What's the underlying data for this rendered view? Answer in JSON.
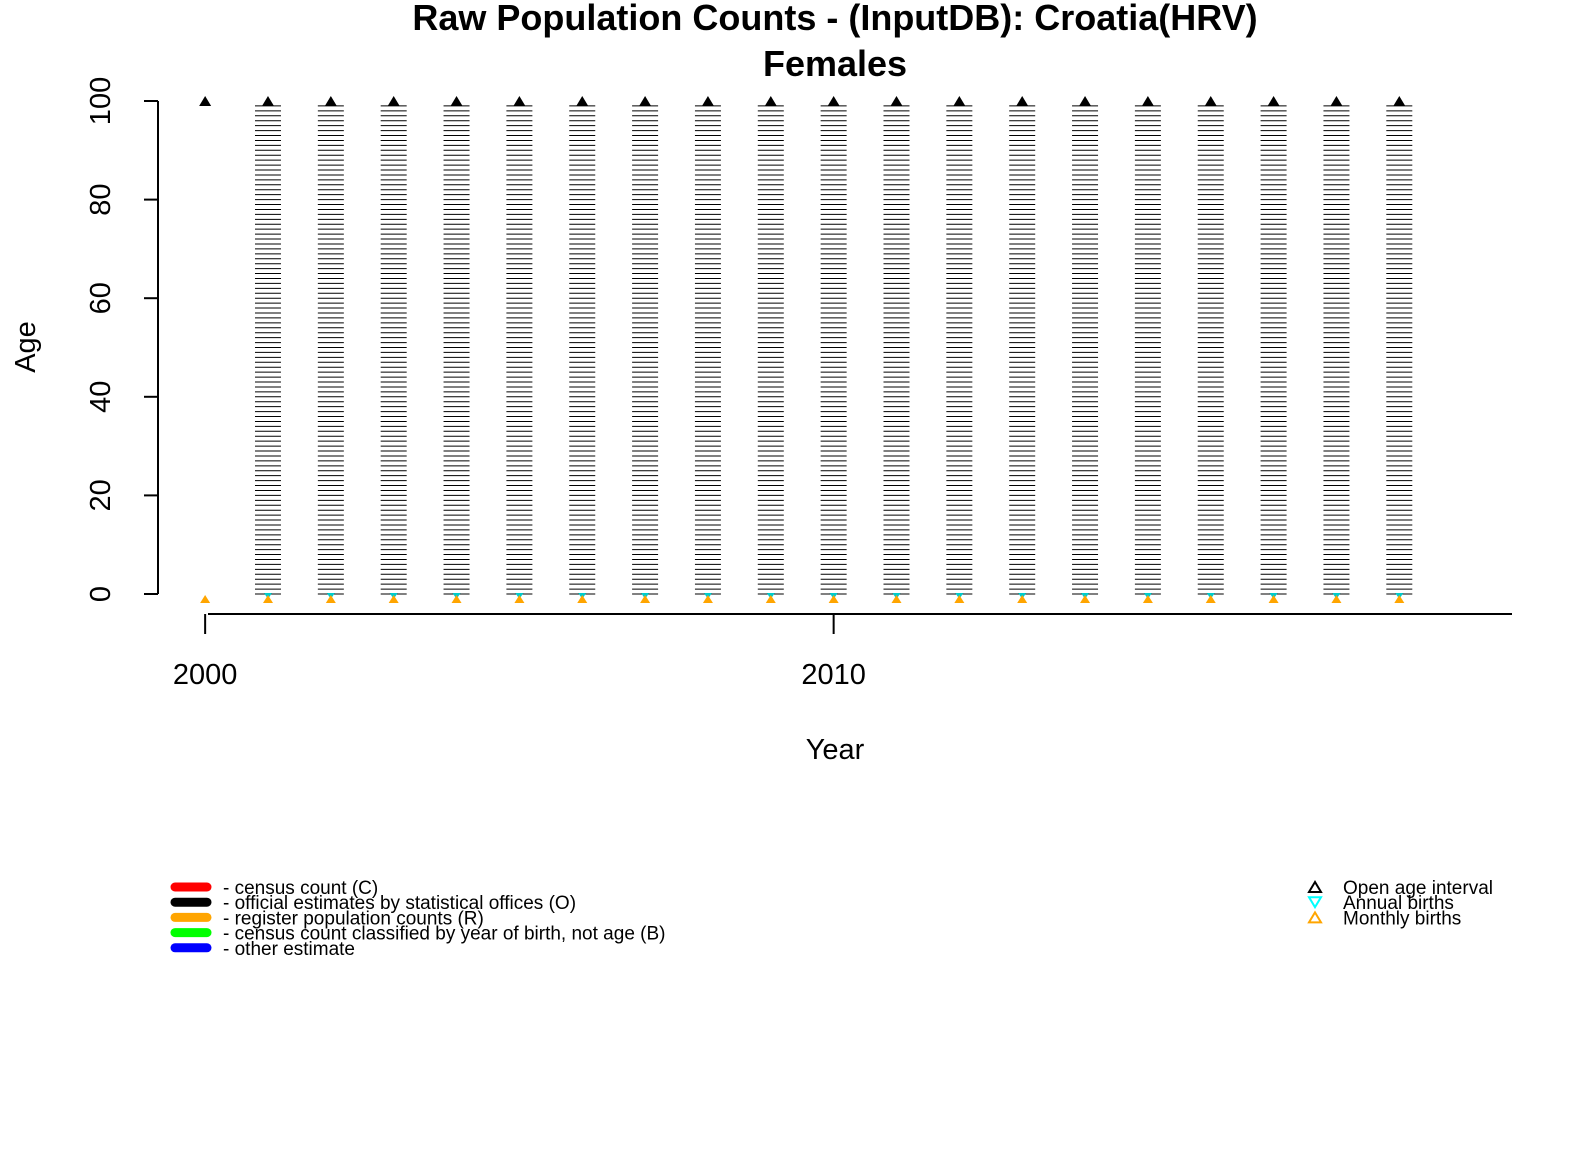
{
  "chart_data": {
    "type": "scatter",
    "title": "Raw Population Counts - (InputDB): Croatia(HRV)",
    "subtitle": "Females",
    "xlabel": "Year",
    "ylabel": "Age",
    "xlim": [
      1999.25,
      2021.0
    ],
    "ylim": [
      0,
      100
    ],
    "x_ticks": [
      2000,
      2010
    ],
    "y_ticks": [
      0,
      20,
      40,
      60,
      80,
      100
    ],
    "series": [
      {
        "name": "official estimates by statistical offices (O)",
        "code": "O",
        "color": "#000000",
        "years": [
          2001,
          2002,
          2003,
          2004,
          2005,
          2006,
          2007,
          2008,
          2009,
          2010,
          2011,
          2012,
          2013,
          2014,
          2015,
          2016,
          2017,
          2018,
          2019
        ],
        "age_step": 1,
        "age_max": 99
      }
    ],
    "open_age_interval": {
      "years": [
        2000,
        2001,
        2002,
        2003,
        2004,
        2005,
        2006,
        2007,
        2008,
        2009,
        2010,
        2011,
        2012,
        2013,
        2014,
        2015,
        2016,
        2017,
        2018,
        2019
      ],
      "age": 100
    },
    "annual_births": {
      "years": [
        2001,
        2002,
        2003,
        2004,
        2005,
        2006,
        2007,
        2008,
        2009,
        2010,
        2011,
        2012,
        2013,
        2014,
        2015,
        2016,
        2017,
        2018,
        2019
      ]
    },
    "monthly_births": {
      "years": [
        2000,
        2001,
        2002,
        2003,
        2004,
        2005,
        2006,
        2007,
        2008,
        2009,
        2010,
        2011,
        2012,
        2013,
        2014,
        2015,
        2016,
        2017,
        2018,
        2019
      ]
    },
    "legend_left": [
      {
        "label": "- census count (C)",
        "color": "#ff0000"
      },
      {
        "label": "- official estimates by statistical offices (O)",
        "color": "#000000"
      },
      {
        "label": "- register population counts (R)",
        "color": "#ffa500"
      },
      {
        "label": "- census count classified by year of birth, not age (B)",
        "color": "#00ff00"
      },
      {
        "label": "- other estimate",
        "color": "#0000ff"
      }
    ],
    "legend_right": [
      {
        "label": "Open age interval",
        "symbol": "triangle-up",
        "color": "#000000"
      },
      {
        "label": "Annual births",
        "symbol": "triangle-down",
        "color": "#00ffff"
      },
      {
        "label": "Monthly births",
        "symbol": "triangle-up",
        "color": "#ffa500"
      }
    ]
  }
}
